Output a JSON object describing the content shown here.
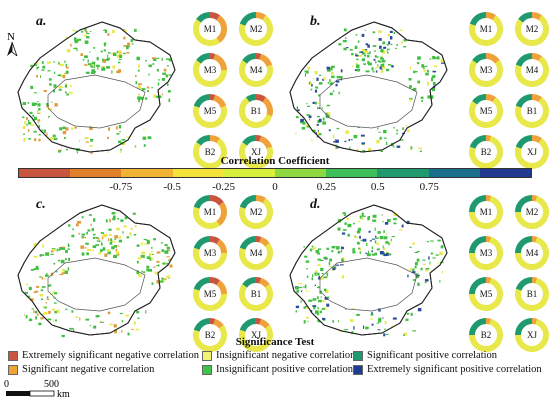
{
  "panels": [
    {
      "letter": "a.",
      "donuts": [
        {
          "label": "M1",
          "seg": [
            0.1,
            0.3,
            0.45,
            0.15
          ]
        },
        {
          "label": "M2",
          "seg": [
            0.0,
            0.1,
            0.7,
            0.2
          ]
        },
        {
          "label": "M3",
          "seg": [
            0.05,
            0.2,
            0.6,
            0.15
          ]
        },
        {
          "label": "M4",
          "seg": [
            0.05,
            0.15,
            0.65,
            0.15
          ]
        },
        {
          "label": "M5",
          "seg": [
            0.05,
            0.15,
            0.6,
            0.2
          ]
        },
        {
          "label": "B1",
          "seg": [
            0.1,
            0.2,
            0.6,
            0.1
          ]
        },
        {
          "label": "B2",
          "seg": [
            0.0,
            0.1,
            0.75,
            0.15
          ]
        },
        {
          "label": "XJ",
          "seg": [
            0.05,
            0.15,
            0.65,
            0.15
          ]
        }
      ]
    },
    {
      "letter": "b.",
      "donuts": [
        {
          "label": "M1",
          "seg": [
            0.0,
            0.1,
            0.7,
            0.2
          ]
        },
        {
          "label": "M2",
          "seg": [
            0.0,
            0.1,
            0.75,
            0.15
          ]
        },
        {
          "label": "M3",
          "seg": [
            0.0,
            0.15,
            0.7,
            0.15
          ]
        },
        {
          "label": "M4",
          "seg": [
            0.0,
            0.1,
            0.7,
            0.2
          ]
        },
        {
          "label": "M5",
          "seg": [
            0.0,
            0.1,
            0.75,
            0.15
          ]
        },
        {
          "label": "B1",
          "seg": [
            0.0,
            0.1,
            0.7,
            0.2
          ]
        },
        {
          "label": "B2",
          "seg": [
            0.0,
            0.05,
            0.75,
            0.2
          ]
        },
        {
          "label": "XJ",
          "seg": [
            0.0,
            0.1,
            0.7,
            0.2
          ]
        }
      ]
    },
    {
      "letter": "c.",
      "donuts": [
        {
          "label": "M1",
          "seg": [
            0.15,
            0.25,
            0.4,
            0.2
          ]
        },
        {
          "label": "M2",
          "seg": [
            0.0,
            0.1,
            0.7,
            0.2
          ]
        },
        {
          "label": "M3",
          "seg": [
            0.1,
            0.15,
            0.55,
            0.2
          ]
        },
        {
          "label": "M4",
          "seg": [
            0.05,
            0.1,
            0.65,
            0.2
          ]
        },
        {
          "label": "M5",
          "seg": [
            0.1,
            0.15,
            0.55,
            0.2
          ]
        },
        {
          "label": "B1",
          "seg": [
            0.05,
            0.1,
            0.7,
            0.15
          ]
        },
        {
          "label": "B2",
          "seg": [
            0.05,
            0.1,
            0.65,
            0.2
          ]
        },
        {
          "label": "XJ",
          "seg": [
            0.05,
            0.1,
            0.65,
            0.2
          ]
        }
      ]
    },
    {
      "letter": "d.",
      "donuts": [
        {
          "label": "M1",
          "seg": [
            0.0,
            0.05,
            0.7,
            0.25
          ]
        },
        {
          "label": "M2",
          "seg": [
            0.0,
            0.05,
            0.7,
            0.25
          ]
        },
        {
          "label": "M3",
          "seg": [
            0.0,
            0.05,
            0.7,
            0.25
          ]
        },
        {
          "label": "M4",
          "seg": [
            0.0,
            0.05,
            0.7,
            0.25
          ]
        },
        {
          "label": "M5",
          "seg": [
            0.0,
            0.05,
            0.7,
            0.25
          ]
        },
        {
          "label": "B1",
          "seg": [
            0.0,
            0.05,
            0.75,
            0.2
          ]
        },
        {
          "label": "B2",
          "seg": [
            0.0,
            0.05,
            0.7,
            0.25
          ]
        },
        {
          "label": "XJ",
          "seg": [
            0.0,
            0.05,
            0.7,
            0.25
          ]
        }
      ]
    }
  ],
  "colorbar": {
    "title": "Correlation Coefficient",
    "ticks": [
      "-0.75",
      "-0.5",
      "-0.25",
      "0",
      "0.25",
      "0.5",
      "0.75"
    ],
    "colors": [
      "#c8553d",
      "#e0802a",
      "#f2b233",
      "#f5e23b",
      "#d8ef3c",
      "#8fd83f",
      "#3fbf5a",
      "#1f9a6e",
      "#1a6f8f",
      "#213a8f"
    ]
  },
  "significance": {
    "title": "Significance Test",
    "items": [
      {
        "label": "Extremely significant negative correlation",
        "color": "#c8553d"
      },
      {
        "label": "Insignificant negative correlation",
        "color": "#f5f07a"
      },
      {
        "label": "Significant positive correlation",
        "color": "#1f9a6e"
      },
      {
        "label": "Significant negative correlation",
        "color": "#f0a23a"
      },
      {
        "label": "Insignificant positive correlation",
        "color": "#3fc24a"
      },
      {
        "label": "Extremely significant positive correlation",
        "color": "#1d3c8f"
      }
    ]
  },
  "map_colors": {
    "green": "#3fbf3f",
    "yellow": "#e8e84a",
    "orange": "#e09a3a",
    "blue": "#2a4a9a",
    "border": "#222222"
  },
  "north_label": "N",
  "scale": {
    "zero": "0",
    "value": "500",
    "unit": "km"
  }
}
